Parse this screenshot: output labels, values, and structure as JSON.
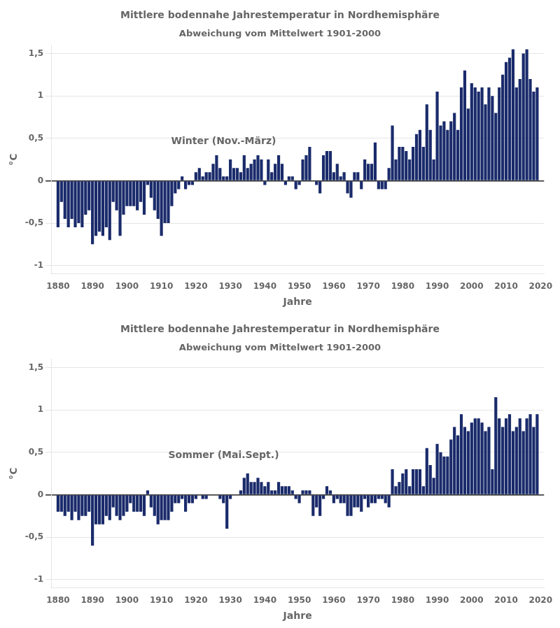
{
  "chart_data": [
    {
      "type": "bar",
      "title": "Mittlere bodennahe Jahrestemperatur in Nordhemisphäre",
      "subtitle": "Abweichung vom Mittelwert 1901-2000",
      "annotations": [
        "Winter (Nov.-März)"
      ],
      "xlabel": "Jahre",
      "ylabel": "°C",
      "color": "#1a2b6b",
      "grid": true,
      "xlim": [
        1878,
        2021
      ],
      "xticks": [
        1880,
        1890,
        1900,
        1910,
        1920,
        1930,
        1940,
        1950,
        1960,
        1970,
        1980,
        1990,
        2000,
        2010,
        2020
      ],
      "ylim": [
        -1.1,
        1.6
      ],
      "yticks": [
        -1,
        {
          "value": -0.5,
          "label": "-0,5"
        },
        0,
        {
          "value": 0.5,
          "label": "0,5"
        },
        1,
        {
          "value": 1.5,
          "label": "1,5"
        }
      ],
      "x": [
        1880,
        1881,
        1882,
        1883,
        1884,
        1885,
        1886,
        1887,
        1888,
        1889,
        1890,
        1891,
        1892,
        1893,
        1894,
        1895,
        1896,
        1897,
        1898,
        1899,
        1900,
        1901,
        1902,
        1903,
        1904,
        1905,
        1906,
        1907,
        1908,
        1909,
        1910,
        1911,
        1912,
        1913,
        1914,
        1915,
        1916,
        1917,
        1918,
        1919,
        1920,
        1921,
        1922,
        1923,
        1924,
        1925,
        1926,
        1927,
        1928,
        1929,
        1930,
        1931,
        1932,
        1933,
        1934,
        1935,
        1936,
        1937,
        1938,
        1939,
        1940,
        1941,
        1942,
        1943,
        1944,
        1945,
        1946,
        1947,
        1948,
        1949,
        1950,
        1951,
        1952,
        1953,
        1954,
        1955,
        1956,
        1957,
        1958,
        1959,
        1960,
        1961,
        1962,
        1963,
        1964,
        1965,
        1966,
        1967,
        1968,
        1969,
        1970,
        1971,
        1972,
        1973,
        1974,
        1975,
        1976,
        1977,
        1978,
        1979,
        1980,
        1981,
        1982,
        1983,
        1984,
        1985,
        1986,
        1987,
        1988,
        1989,
        1990,
        1991,
        1992,
        1993,
        1994,
        1995,
        1996,
        1997,
        1998,
        1999,
        2000,
        2001,
        2002,
        2003,
        2004,
        2005,
        2006,
        2007,
        2008,
        2009,
        2010,
        2011,
        2012,
        2013,
        2014,
        2015,
        2016,
        2017,
        2018,
        2019
      ],
      "values": [
        -0.55,
        -0.25,
        -0.45,
        -0.55,
        -0.45,
        -0.55,
        -0.5,
        -0.55,
        -0.4,
        -0.35,
        -0.75,
        -0.65,
        -0.6,
        -0.65,
        -0.55,
        -0.7,
        -0.25,
        -0.35,
        -0.65,
        -0.4,
        -0.3,
        -0.3,
        -0.3,
        -0.35,
        -0.25,
        -0.4,
        -0.05,
        -0.2,
        -0.35,
        -0.45,
        -0.65,
        -0.5,
        -0.5,
        -0.3,
        -0.15,
        -0.1,
        0.05,
        -0.1,
        -0.05,
        -0.05,
        0.1,
        0.15,
        0.05,
        0.1,
        0.1,
        0.2,
        0.3,
        0.15,
        0.05,
        0.05,
        0.25,
        0.15,
        0.15,
        0.1,
        0.3,
        0.15,
        0.2,
        0.25,
        0.3,
        0.25,
        -0.05,
        0.25,
        0.1,
        0.2,
        0.3,
        0.2,
        -0.05,
        0.05,
        0.05,
        -0.1,
        -0.05,
        0.25,
        0.3,
        0.4,
        0.0,
        -0.05,
        -0.15,
        0.3,
        0.35,
        0.35,
        0.1,
        0.2,
        0.05,
        0.1,
        -0.15,
        -0.2,
        0.1,
        0.1,
        -0.1,
        0.25,
        0.2,
        0.2,
        0.45,
        -0.1,
        -0.1,
        -0.1,
        0.15,
        0.65,
        0.25,
        0.4,
        0.4,
        0.35,
        0.25,
        0.4,
        0.55,
        0.6,
        0.4,
        0.9,
        0.6,
        0.25,
        1.05,
        0.65,
        0.7,
        0.6,
        0.7,
        0.8,
        0.6,
        1.1,
        1.3,
        0.85,
        1.15,
        1.1,
        1.05,
        1.1,
        0.9,
        1.1,
        1.0,
        0.8,
        1.1,
        1.25,
        1.4,
        1.45,
        1.55,
        1.1,
        1.2,
        1.5,
        1.55,
        1.2,
        1.05,
        1.1
      ]
    },
    {
      "type": "bar",
      "title": "Mittlere bodennahe Jahrestemperatur in Nordhemisphäre",
      "subtitle": "Abweichung vom Mittelwert 1901-2000",
      "annotations": [
        "Sommer (Mai.Sept.)"
      ],
      "xlabel": "Jahre",
      "ylabel": "°C",
      "color": "#1a2b6b",
      "grid": true,
      "xlim": [
        1878,
        2021
      ],
      "xticks": [
        1880,
        1890,
        1900,
        1910,
        1920,
        1930,
        1940,
        1950,
        1960,
        1970,
        1980,
        1990,
        2000,
        2010,
        2020
      ],
      "ylim": [
        -1.1,
        1.6
      ],
      "yticks": [
        -1,
        {
          "value": -0.5,
          "label": "-0,5"
        },
        0,
        {
          "value": 0.5,
          "label": "0,5"
        },
        1,
        {
          "value": 1.5,
          "label": "1,5"
        }
      ],
      "x": [
        1880,
        1881,
        1882,
        1883,
        1884,
        1885,
        1886,
        1887,
        1888,
        1889,
        1890,
        1891,
        1892,
        1893,
        1894,
        1895,
        1896,
        1897,
        1898,
        1899,
        1900,
        1901,
        1902,
        1903,
        1904,
        1905,
        1906,
        1907,
        1908,
        1909,
        1910,
        1911,
        1912,
        1913,
        1914,
        1915,
        1916,
        1917,
        1918,
        1919,
        1920,
        1921,
        1922,
        1923,
        1924,
        1925,
        1926,
        1927,
        1928,
        1929,
        1930,
        1931,
        1932,
        1933,
        1934,
        1935,
        1936,
        1937,
        1938,
        1939,
        1940,
        1941,
        1942,
        1943,
        1944,
        1945,
        1946,
        1947,
        1948,
        1949,
        1950,
        1951,
        1952,
        1953,
        1954,
        1955,
        1956,
        1957,
        1958,
        1959,
        1960,
        1961,
        1962,
        1963,
        1964,
        1965,
        1966,
        1967,
        1968,
        1969,
        1970,
        1971,
        1972,
        1973,
        1974,
        1975,
        1976,
        1977,
        1978,
        1979,
        1980,
        1981,
        1982,
        1983,
        1984,
        1985,
        1986,
        1987,
        1988,
        1989,
        1990,
        1991,
        1992,
        1993,
        1994,
        1995,
        1996,
        1997,
        1998,
        1999,
        2000,
        2001,
        2002,
        2003,
        2004,
        2005,
        2006,
        2007,
        2008,
        2009,
        2010,
        2011,
        2012,
        2013,
        2014,
        2015,
        2016,
        2017,
        2018,
        2019
      ],
      "values": [
        -0.2,
        -0.2,
        -0.25,
        -0.2,
        -0.3,
        -0.2,
        -0.3,
        -0.25,
        -0.25,
        -0.2,
        -0.6,
        -0.35,
        -0.35,
        -0.35,
        -0.25,
        -0.3,
        -0.15,
        -0.25,
        -0.3,
        -0.25,
        -0.2,
        -0.1,
        -0.2,
        -0.2,
        -0.2,
        -0.25,
        0.05,
        -0.15,
        -0.25,
        -0.35,
        -0.3,
        -0.3,
        -0.3,
        -0.2,
        -0.1,
        -0.1,
        -0.05,
        -0.2,
        -0.1,
        -0.1,
        -0.05,
        0.0,
        -0.05,
        -0.05,
        0.0,
        0.0,
        0.0,
        -0.05,
        -0.1,
        -0.4,
        -0.05,
        0.0,
        0.0,
        0.05,
        0.2,
        0.25,
        0.15,
        0.15,
        0.2,
        0.15,
        0.1,
        0.15,
        0.05,
        0.05,
        0.15,
        0.1,
        0.1,
        0.1,
        0.05,
        -0.05,
        -0.1,
        0.05,
        0.05,
        0.05,
        -0.25,
        -0.15,
        -0.25,
        -0.05,
        0.1,
        0.05,
        -0.1,
        -0.05,
        -0.1,
        -0.1,
        -0.25,
        -0.25,
        -0.15,
        -0.15,
        -0.2,
        -0.05,
        -0.15,
        -0.1,
        -0.1,
        -0.05,
        -0.05,
        -0.1,
        -0.15,
        0.3,
        0.1,
        0.15,
        0.25,
        0.3,
        0.1,
        0.3,
        0.3,
        0.3,
        0.1,
        0.55,
        0.35,
        0.2,
        0.6,
        0.5,
        0.45,
        0.45,
        0.65,
        0.8,
        0.7,
        0.95,
        0.8,
        0.75,
        0.85,
        0.9,
        0.9,
        0.85,
        0.75,
        0.8,
        0.3,
        1.15,
        0.9,
        0.8,
        0.9,
        0.95,
        0.75,
        0.8,
        0.9,
        0.75,
        0.9,
        0.95,
        0.8,
        0.95
      ]
    }
  ]
}
